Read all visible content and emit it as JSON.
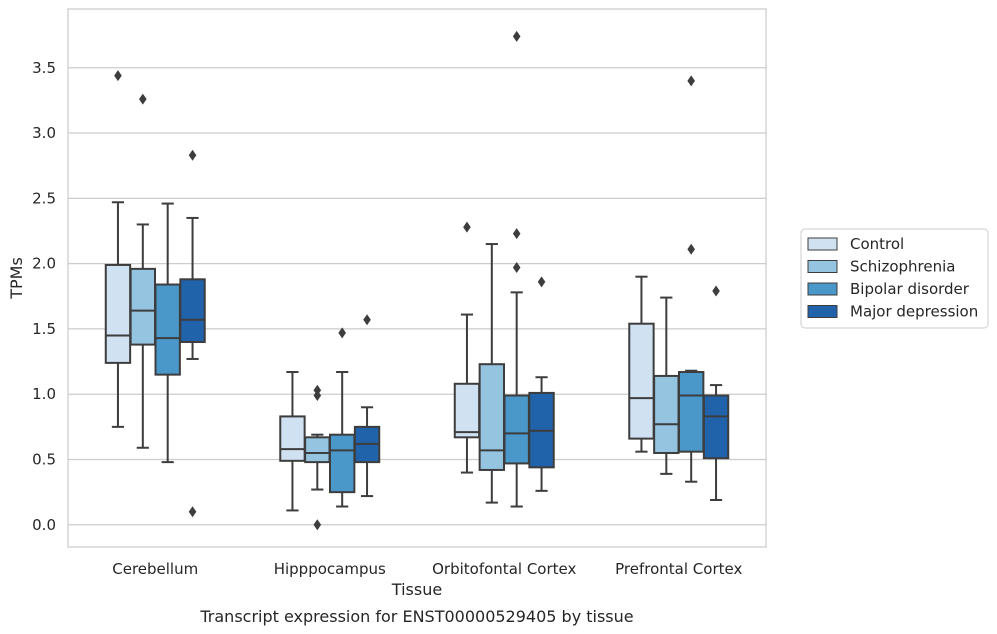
{
  "chart_data": {
    "type": "box",
    "xlabel": "Tissue",
    "ylabel": "TPMs",
    "caption": "Transcript expression for ENST00000529405 by tissue",
    "ylim": [
      -0.17,
      3.95
    ],
    "yticks": [
      0.0,
      0.5,
      1.0,
      1.5,
      2.0,
      2.5,
      3.0,
      3.5
    ],
    "ytick_labels": [
      "0.0",
      "0.5",
      "1.0",
      "1.5",
      "2.0",
      "2.5",
      "3.0",
      "3.5"
    ],
    "grid": "horizontal",
    "legend_position": "outside-right",
    "categories": [
      "Cerebellum",
      "Hipppocampus",
      "Orbitofontal Cortex",
      "Prefrontal Cortex"
    ],
    "series": [
      {
        "name": "Control",
        "color": "#d0e1f2",
        "boxes": [
          {
            "whisker_low": 0.75,
            "q1": 1.24,
            "median": 1.45,
            "q3": 1.99,
            "whisker_high": 2.47,
            "outliers": [
              3.44
            ]
          },
          {
            "whisker_low": 0.11,
            "q1": 0.49,
            "median": 0.58,
            "q3": 0.83,
            "whisker_high": 1.17,
            "outliers": []
          },
          {
            "whisker_low": 0.4,
            "q1": 0.67,
            "median": 0.71,
            "q3": 1.08,
            "whisker_high": 1.61,
            "outliers": [
              2.28
            ]
          },
          {
            "whisker_low": 0.56,
            "q1": 0.66,
            "median": 0.97,
            "q3": 1.54,
            "whisker_high": 1.9,
            "outliers": []
          }
        ]
      },
      {
        "name": "Schizophrenia",
        "color": "#94c4df",
        "boxes": [
          {
            "whisker_low": 0.59,
            "q1": 1.38,
            "median": 1.64,
            "q3": 1.96,
            "whisker_high": 2.3,
            "outliers": [
              3.26
            ]
          },
          {
            "whisker_low": 0.27,
            "q1": 0.48,
            "median": 0.55,
            "q3": 0.67,
            "whisker_high": 0.69,
            "outliers": [
              0.99,
              1.03,
              0.0
            ]
          },
          {
            "whisker_low": 0.17,
            "q1": 0.42,
            "median": 0.57,
            "q3": 1.23,
            "whisker_high": 2.15,
            "outliers": []
          },
          {
            "whisker_low": 0.39,
            "q1": 0.55,
            "median": 0.77,
            "q3": 1.14,
            "whisker_high": 1.74,
            "outliers": []
          }
        ]
      },
      {
        "name": "Bipolar disorder",
        "color": "#4a98c9",
        "boxes": [
          {
            "whisker_low": 0.48,
            "q1": 1.15,
            "median": 1.43,
            "q3": 1.84,
            "whisker_high": 2.46,
            "outliers": []
          },
          {
            "whisker_low": 0.14,
            "q1": 0.25,
            "median": 0.57,
            "q3": 0.69,
            "whisker_high": 1.17,
            "outliers": [
              1.47
            ]
          },
          {
            "whisker_low": 0.14,
            "q1": 0.47,
            "median": 0.7,
            "q3": 0.99,
            "whisker_high": 1.78,
            "outliers": [
              1.97,
              2.23,
              3.74
            ]
          },
          {
            "whisker_low": 0.33,
            "q1": 0.56,
            "median": 0.99,
            "q3": 1.17,
            "whisker_high": 1.18,
            "outliers": [
              2.11,
              3.4
            ]
          }
        ]
      },
      {
        "name": "Major depression",
        "color": "#2163aa",
        "boxes": [
          {
            "whisker_low": 1.27,
            "q1": 1.4,
            "median": 1.57,
            "q3": 1.88,
            "whisker_high": 2.35,
            "outliers": [
              2.83,
              0.1
            ]
          },
          {
            "whisker_low": 0.22,
            "q1": 0.48,
            "median": 0.62,
            "q3": 0.75,
            "whisker_high": 0.9,
            "outliers": [
              1.57
            ]
          },
          {
            "whisker_low": 0.26,
            "q1": 0.44,
            "median": 0.72,
            "q3": 1.01,
            "whisker_high": 1.13,
            "outliers": [
              1.86
            ]
          },
          {
            "whisker_low": 0.19,
            "q1": 0.51,
            "median": 0.83,
            "q3": 0.99,
            "whisker_high": 1.07,
            "outliers": [
              1.79
            ]
          }
        ]
      }
    ]
  }
}
